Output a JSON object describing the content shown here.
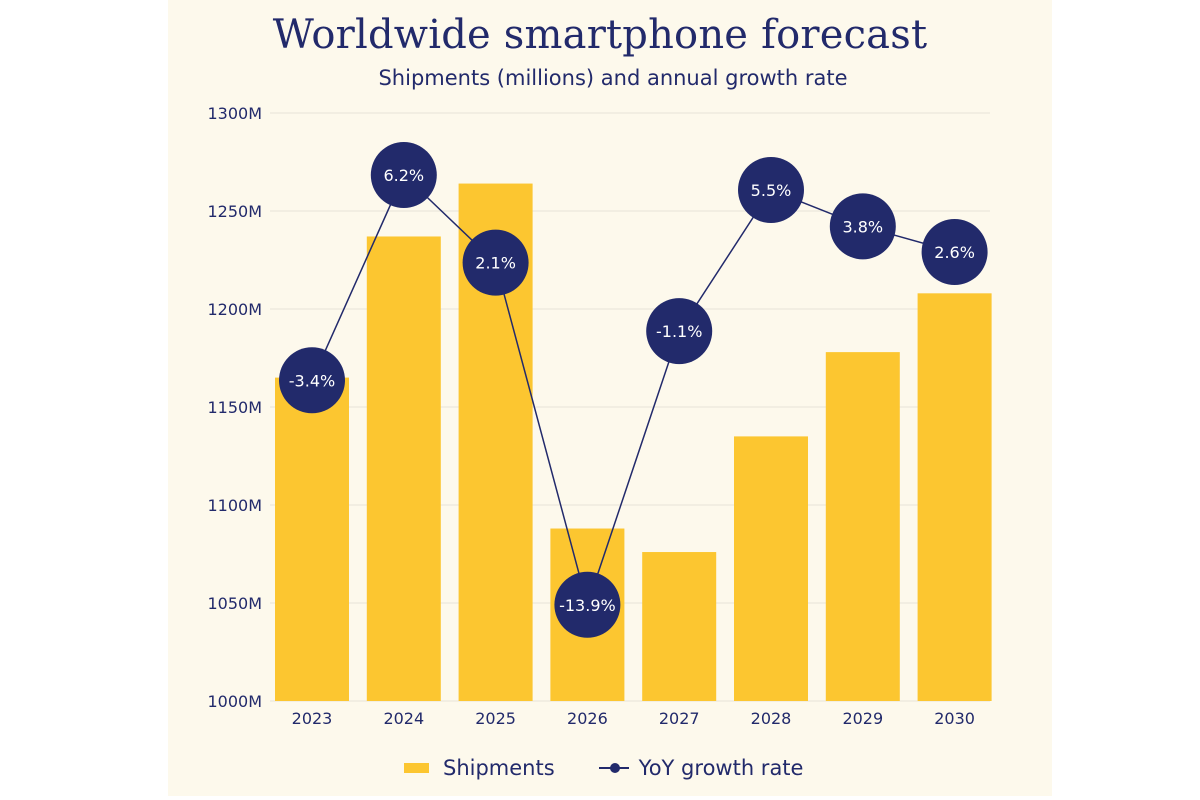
{
  "colors": {
    "bar": "#fcc630",
    "point": "#222a6b",
    "text": "#222a6b",
    "grid": "#e8e4d8",
    "background": "#fdf9ec"
  },
  "chart_data": {
    "type": "bar",
    "title": "Worldwide smartphone forecast",
    "subtitle": "Shipments (millions) and annual growth rate",
    "categories": [
      "2023",
      "2024",
      "2025",
      "2026",
      "2027",
      "2028",
      "2029",
      "2030"
    ],
    "ylim": [
      1000,
      1300
    ],
    "yticks": [
      1000,
      1050,
      1100,
      1150,
      1200,
      1250,
      1300
    ],
    "ytick_labels": [
      "1000M",
      "1050M",
      "1100M",
      "1150M",
      "1200M",
      "1250M",
      "1300M"
    ],
    "grid": true,
    "legend_position": "bottom",
    "series": [
      {
        "name": "Shipments",
        "type": "bar",
        "values": [
          1165,
          1237,
          1264,
          1088,
          1076,
          1135,
          1178,
          1208
        ]
      },
      {
        "name": "YoY growth rate",
        "type": "line",
        "values": [
          -3.4,
          6.2,
          2.1,
          -13.9,
          -1.1,
          5.5,
          3.8,
          2.6
        ],
        "labels": [
          "-3.4%",
          "6.2%",
          "2.1%",
          "-13.9%",
          "-1.1%",
          "5.5%",
          "3.8%",
          "2.6%"
        ]
      }
    ]
  }
}
